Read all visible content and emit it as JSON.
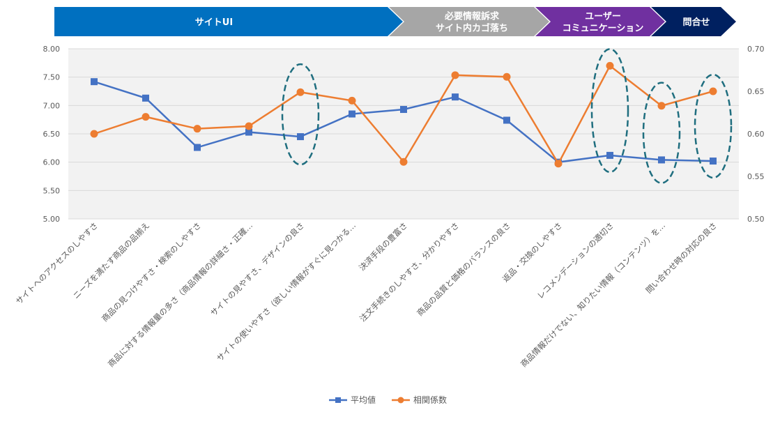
{
  "banners": [
    {
      "lines": [
        "サイトUI"
      ],
      "color": "#0070C0"
    },
    {
      "lines": [
        "必要情報訴求",
        "サイト内カゴ落ち"
      ],
      "color": "#A6A6A6"
    },
    {
      "lines": [
        "ユーザー",
        "コミュニケーション"
      ],
      "color": "#7030A0"
    },
    {
      "lines": [
        "問合せ"
      ],
      "color": "#002060"
    }
  ],
  "chart_data": {
    "type": "line",
    "categories": [
      "サイトへのアクセスのしやすさ",
      "ニーズを満たす商品の品揃え",
      "商品の見つけやすさ・検索のしやすさ",
      "商品に対する情報量の多さ（商品情報の詳細さ・正確…",
      "サイトの見やすさ、デザインの良さ",
      "サイトの使いやすさ（欲しい情報がすぐに見つかる…",
      "決済手段の豊富さ",
      "注文手続きのしやすさ、分かりやすさ",
      "商品の品質と価格のバランスの良さ",
      "返品・交換のしやすさ",
      "レコメンデーションの適切さ",
      "商品情報だけでない、知りたい情報（コンテンツ）を…",
      "問い合わせ時の対応の良さ"
    ],
    "series": [
      {
        "name": "平均値",
        "axis": "left",
        "color": "#4472C4",
        "marker": "square",
        "values": [
          7.42,
          7.13,
          6.26,
          6.53,
          6.45,
          6.85,
          6.93,
          7.15,
          6.74,
          6.0,
          6.12,
          6.04,
          6.02
        ]
      },
      {
        "name": "相関係数",
        "axis": "right",
        "color": "#ED7D31",
        "marker": "circle",
        "values": [
          0.6,
          0.62,
          0.606,
          0.609,
          0.649,
          0.639,
          0.567,
          0.669,
          0.667,
          0.565,
          0.68,
          0.633,
          0.65
        ]
      }
    ],
    "y_left": {
      "min": 5.0,
      "max": 8.0,
      "ticks": [
        "5.00",
        "5.50",
        "6.00",
        "6.50",
        "7.00",
        "7.50",
        "8.00"
      ]
    },
    "y_right": {
      "min": 0.5,
      "max": 0.7,
      "ticks": [
        "0.50",
        "0.55",
        "0.60",
        "0.65",
        "0.70"
      ]
    },
    "grid": true,
    "legend": "bottom",
    "highlighted_categories": [
      4,
      10,
      11,
      12
    ],
    "highlight_color": "#1F6E7F"
  }
}
